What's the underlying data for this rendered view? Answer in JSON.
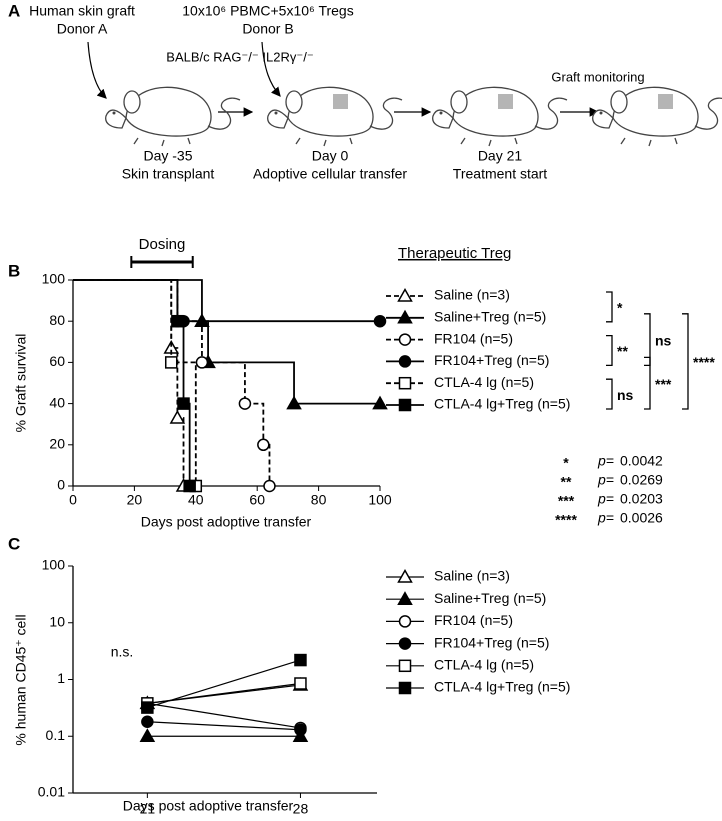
{
  "panel_a": {
    "label": "A",
    "donor_a": [
      "Human skin graft",
      "Donor A"
    ],
    "donor_b": [
      "10x10⁶ PBMC+5x10⁶ Tregs",
      "Donor B"
    ],
    "strain": "BALB/c RAG⁻/⁻ IL2Rγ⁻/⁻",
    "monitoring": "Graft monitoring",
    "steps": [
      {
        "day": "Day -35",
        "event": "Skin transplant"
      },
      {
        "day": "Day 0",
        "event": "Adoptive cellular transfer"
      },
      {
        "day": "Day 21",
        "event": "Treatment start"
      }
    ]
  },
  "chart_data": [
    {
      "type": "step",
      "panel": "B",
      "xlabel": "Days post adoptive transfer",
      "ylabel": "% Graft survival",
      "xlim": [
        0,
        100
      ],
      "xticks": [
        0,
        20,
        40,
        60,
        80,
        100
      ],
      "ylim": [
        0,
        100
      ],
      "yticks": [
        0,
        20,
        40,
        60,
        80,
        100
      ],
      "dosing": {
        "label": "Dosing",
        "start": 19,
        "end": 39
      },
      "legend_title": "Therapeutic Treg",
      "series": [
        {
          "name": "Saline (n=3)",
          "color": "#000000",
          "marker": "triangle",
          "filled": false,
          "dashed": true,
          "x": [
            0,
            32,
            34,
            36
          ],
          "values": [
            100,
            67,
            33,
            0
          ]
        },
        {
          "name": "Saline+Treg (n=5)",
          "color": "#000000",
          "marker": "triangle",
          "filled": true,
          "dashed": false,
          "x": [
            0,
            42,
            44,
            72,
            100
          ],
          "values": [
            100,
            80,
            60,
            40,
            40
          ]
        },
        {
          "name": "FR104 (n=5)",
          "color": "#000000",
          "marker": "circle",
          "filled": false,
          "dashed": true,
          "x": [
            0,
            34,
            42,
            56,
            62,
            64
          ],
          "values": [
            100,
            80,
            60,
            40,
            20,
            0
          ]
        },
        {
          "name": "FR104+Treg (n=5)",
          "color": "#000000",
          "marker": "circle",
          "filled": true,
          "dashed": false,
          "x": [
            0,
            34,
            36,
            100
          ],
          "values": [
            100,
            80,
            80,
            80
          ]
        },
        {
          "name": "CTLA-4 lg (n=5)",
          "color": "#000000",
          "marker": "square",
          "filled": false,
          "dashed": true,
          "x": [
            0,
            32,
            40
          ],
          "values": [
            100,
            60,
            0
          ]
        },
        {
          "name": "CTLA-4 lg+Treg (n=5)",
          "color": "#000000",
          "marker": "square",
          "filled": true,
          "dashed": false,
          "x": [
            0,
            34,
            36,
            38
          ],
          "values": [
            100,
            80,
            40,
            0
          ]
        }
      ],
      "brackets": [
        "*",
        "**",
        "ns",
        "ns",
        "***",
        "****"
      ],
      "p_values": [
        {
          "symbol": "*",
          "label": "p=",
          "value": 0.0042
        },
        {
          "symbol": "**",
          "label": "p=",
          "value": 0.0269
        },
        {
          "symbol": "***",
          "label": "p=",
          "value": 0.0203
        },
        {
          "symbol": "****",
          "label": "p=",
          "value": 0.0026
        }
      ]
    },
    {
      "type": "line",
      "panel": "C",
      "xlabel": "Days post adoptive transfer",
      "ylabel": "% human CD45⁺ cell",
      "log_y": true,
      "annotation": "n.s.",
      "x": [
        21,
        28
      ],
      "xlim": [
        17.6,
        31.5
      ],
      "xticks": [
        21,
        28
      ],
      "ylim": [
        0.01,
        100
      ],
      "yticks": [
        0.01,
        0.1,
        1,
        10,
        100
      ],
      "series": [
        {
          "name": "Saline (n=3)",
          "color": "#000000",
          "marker": "triangle",
          "filled": false,
          "values": [
            0.38,
            0.8
          ]
        },
        {
          "name": "Saline+Treg (n=5)",
          "color": "#000000",
          "marker": "triangle",
          "filled": true,
          "values": [
            0.1,
            0.1
          ]
        },
        {
          "name": "FR104 (n=5)",
          "color": "#000000",
          "marker": "circle",
          "filled": false,
          "values": [
            0.38,
            0.14
          ]
        },
        {
          "name": "FR104+Treg (n=5)",
          "color": "#000000",
          "marker": "circle",
          "filled": true,
          "values": [
            0.18,
            0.13
          ]
        },
        {
          "name": "CTLA-4 lg (n=5)",
          "color": "#000000",
          "marker": "square",
          "filled": false,
          "values": [
            0.38,
            0.85
          ]
        },
        {
          "name": "CTLA-4 lg+Treg (n=5)",
          "color": "#000000",
          "marker": "square",
          "filled": true,
          "values": [
            0.32,
            2.2
          ]
        }
      ]
    }
  ]
}
